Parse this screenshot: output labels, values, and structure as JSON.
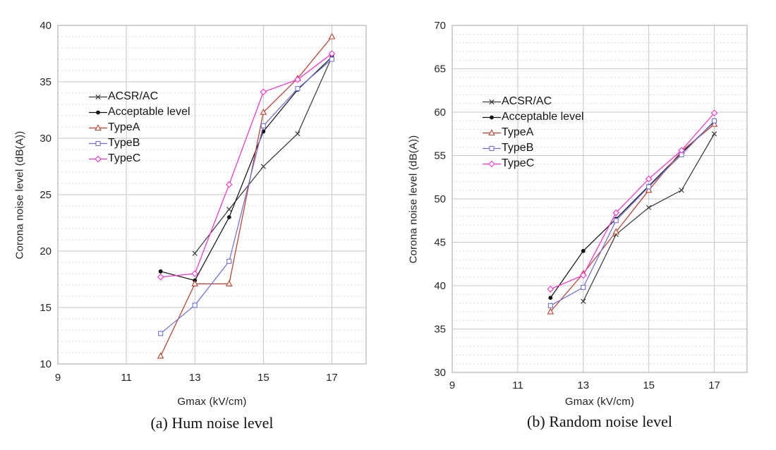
{
  "figure": {
    "background": "#ffffff",
    "grid_major_color": "#c7c7c7",
    "grid_minor_color": "#dadada",
    "border_color": "#b5b5b5"
  },
  "chart_data": [
    {
      "id": "hum",
      "type": "line",
      "caption": "(a) Hum noise level",
      "xlabel": "Gmax (kV/cm)",
      "ylabel": "Corona noise level (dB(A))",
      "xlim": [
        9,
        18
      ],
      "ylim": [
        10,
        40
      ],
      "xticks": [
        9,
        11,
        13,
        15,
        17
      ],
      "yticks": [
        10,
        15,
        20,
        25,
        30,
        35,
        40
      ],
      "minor_y_step": 1,
      "grid": true,
      "legend_position": "upper-left-inside",
      "series": [
        {
          "name": "ACSR/AC",
          "marker": "x",
          "color": "#3c3c3c",
          "points": [
            [
              13,
              19.8
            ],
            [
              14,
              23.7
            ],
            [
              15,
              27.5
            ],
            [
              16,
              30.4
            ],
            [
              17,
              37.2
            ]
          ]
        },
        {
          "name": "Acceptable level",
          "marker": "dot",
          "color": "#141414",
          "points": [
            [
              12,
              18.2
            ],
            [
              13,
              17.4
            ],
            [
              14,
              23.0
            ],
            [
              15,
              30.6
            ],
            [
              16,
              34.3
            ],
            [
              17,
              37.2
            ]
          ]
        },
        {
          "name": "TypeA",
          "marker": "triangle",
          "color": "#c0402e",
          "points": [
            [
              12,
              10.7
            ],
            [
              13,
              17.1
            ],
            [
              14,
              17.1
            ],
            [
              15,
              32.3
            ],
            [
              16,
              35.3
            ],
            [
              17,
              39.0
            ]
          ]
        },
        {
          "name": "TypeB",
          "marker": "square",
          "color": "#6f6fe0",
          "points": [
            [
              12,
              12.7
            ],
            [
              13,
              15.2
            ],
            [
              14,
              19.1
            ],
            [
              15,
              31.1
            ],
            [
              16,
              34.4
            ],
            [
              17,
              37.0
            ]
          ]
        },
        {
          "name": "TypeC",
          "marker": "diamond",
          "color": "#f633cc",
          "points": [
            [
              12,
              17.7
            ],
            [
              13,
              18.0
            ],
            [
              14,
              25.9
            ],
            [
              15,
              34.1
            ],
            [
              16,
              35.2
            ],
            [
              17,
              37.5
            ]
          ]
        }
      ]
    },
    {
      "id": "random",
      "type": "line",
      "caption": "(b) Random noise level",
      "xlabel": "Gmax (kV/cm)",
      "ylabel": "Corona noise level (dB(A))",
      "xlim": [
        9,
        18
      ],
      "ylim": [
        30,
        70
      ],
      "xticks": [
        9,
        11,
        13,
        15,
        17
      ],
      "yticks": [
        30,
        35,
        40,
        45,
        50,
        55,
        60,
        65,
        70
      ],
      "minor_y_step": 1,
      "grid": true,
      "legend_position": "upper-left-inside",
      "series": [
        {
          "name": "ACSR/AC",
          "marker": "x",
          "color": "#3c3c3c",
          "points": [
            [
              13,
              38.2
            ],
            [
              14,
              45.9
            ],
            [
              15,
              49.0
            ],
            [
              16,
              51.0
            ],
            [
              17,
              57.5
            ]
          ]
        },
        {
          "name": "Acceptable level",
          "marker": "dot",
          "color": "#141414",
          "points": [
            [
              12,
              38.6
            ],
            [
              13,
              44.0
            ],
            [
              14,
              47.7
            ],
            [
              15,
              51.5
            ],
            [
              16,
              55.3
            ],
            [
              17,
              58.9
            ]
          ]
        },
        {
          "name": "TypeA",
          "marker": "triangle",
          "color": "#c0402e",
          "points": [
            [
              12,
              37.0
            ],
            [
              13,
              41.4
            ],
            [
              14,
              46.2
            ],
            [
              15,
              51.0
            ],
            [
              16,
              55.5
            ],
            [
              17,
              58.6
            ]
          ]
        },
        {
          "name": "TypeB",
          "marker": "square",
          "color": "#6f6fe0",
          "points": [
            [
              12,
              37.7
            ],
            [
              13,
              39.8
            ],
            [
              14,
              47.5
            ],
            [
              15,
              51.4
            ],
            [
              16,
              55.1
            ],
            [
              17,
              59.0
            ]
          ]
        },
        {
          "name": "TypeC",
          "marker": "diamond",
          "color": "#f633cc",
          "points": [
            [
              12,
              39.6
            ],
            [
              13,
              41.2
            ],
            [
              14,
              48.4
            ],
            [
              15,
              52.3
            ],
            [
              16,
              55.6
            ],
            [
              17,
              59.9
            ]
          ]
        }
      ]
    }
  ]
}
